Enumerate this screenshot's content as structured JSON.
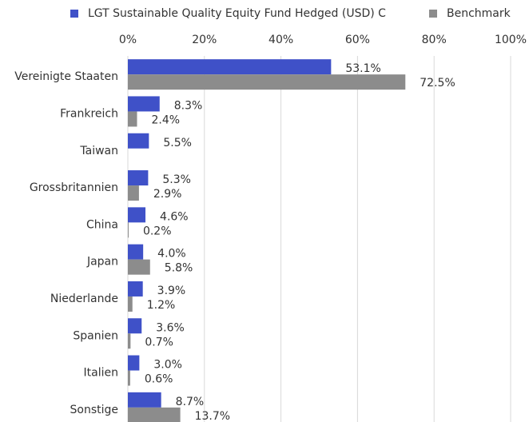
{
  "chart_data": {
    "type": "bar",
    "orientation": "horizontal",
    "categories": [
      "Vereinigte Staaten",
      "Frankreich",
      "Taiwan",
      "Grossbritannien",
      "China",
      "Japan",
      "Niederlande",
      "Spanien",
      "Italien",
      "Sonstige"
    ],
    "series": [
      {
        "name": "LGT Sustainable Quality Equity Fund Hedged (USD) C",
        "color": "#3f51c8",
        "values": [
          53.1,
          8.3,
          5.5,
          5.3,
          4.6,
          4.0,
          3.9,
          3.6,
          3.0,
          8.7
        ],
        "value_labels": [
          "53.1%",
          "8.3%",
          "5.5%",
          "5.3%",
          "4.6%",
          "4.0%",
          "3.9%",
          "3.6%",
          "3.0%",
          "8.7%"
        ]
      },
      {
        "name": "Benchmark",
        "color": "#8c8c8c",
        "values": [
          72.5,
          2.4,
          null,
          2.9,
          0.2,
          5.8,
          1.2,
          0.7,
          0.6,
          13.7
        ],
        "value_labels": [
          "72.5%",
          "2.4%",
          null,
          "2.9%",
          "0.2%",
          "5.8%",
          "1.2%",
          "0.7%",
          "0.6%",
          "13.7%"
        ]
      }
    ],
    "xlim": [
      0,
      100
    ],
    "xticks": [
      {
        "value": 0,
        "label": "0%"
      },
      {
        "value": 20,
        "label": "20%"
      },
      {
        "value": 40,
        "label": "40%"
      },
      {
        "value": 60,
        "label": "60%"
      },
      {
        "value": 80,
        "label": "80%"
      },
      {
        "value": 100,
        "label": "100%"
      }
    ],
    "grid": true,
    "legend": "top"
  }
}
